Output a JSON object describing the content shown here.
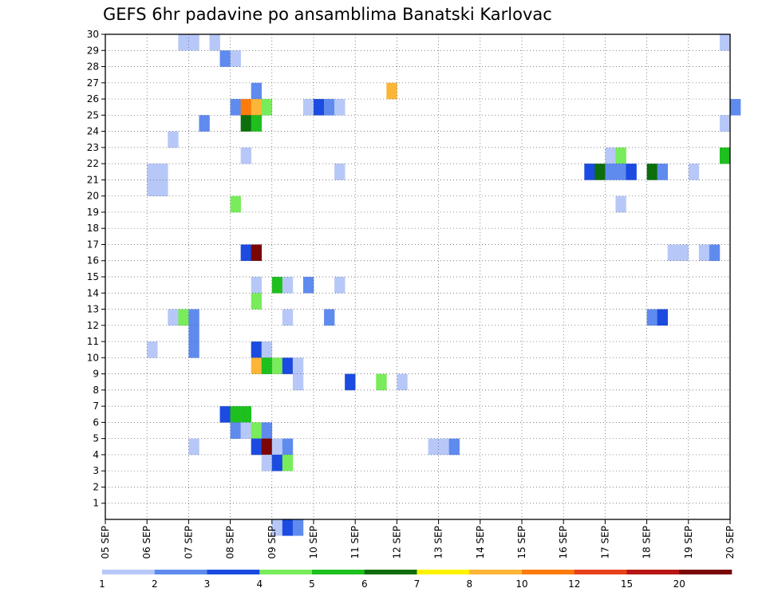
{
  "chart_data": {
    "type": "heatmap",
    "title": "GEFS 6hr padavine po ansamblima Banatski Karlovac",
    "xlabel": "",
    "ylabel": "",
    "x_ticks": [
      "05 SEP",
      "06 SEP",
      "07 SEP",
      "08 SEP",
      "09 SEP",
      "10 SEP",
      "11 SEP",
      "12 SEP",
      "13 SEP",
      "14 SEP",
      "15 SEP",
      "16 SEP",
      "17 SEP",
      "18 SEP",
      "19 SEP",
      "20 SEP"
    ],
    "y_ticks": [
      1,
      2,
      3,
      4,
      5,
      6,
      7,
      8,
      9,
      10,
      11,
      12,
      13,
      14,
      15,
      16,
      17,
      18,
      19,
      20,
      21,
      22,
      23,
      24,
      25,
      26,
      27,
      28,
      29,
      30
    ],
    "xlim": [
      0,
      60
    ],
    "ylim": [
      0,
      30
    ],
    "grid": true,
    "colorbar": {
      "colors": [
        "#b7c8f8",
        "#5f8bef",
        "#1b4be0",
        "#78ec5a",
        "#1ec01e",
        "#0c6e0c",
        "#fff200",
        "#fcb536",
        "#fb7b0c",
        "#e8421a",
        "#b81616",
        "#7a0606"
      ],
      "labels": [
        "1",
        "2",
        "3",
        "4",
        "5",
        "6",
        "7",
        "8",
        "10",
        "12",
        "15",
        "20"
      ]
    },
    "cells": [
      {
        "x": 7,
        "y": 30,
        "v": 1
      },
      {
        "x": 8,
        "y": 30,
        "v": 1
      },
      {
        "x": 10,
        "y": 30,
        "v": 1
      },
      {
        "x": 59,
        "y": 30,
        "v": 1
      },
      {
        "x": 11,
        "y": 29,
        "v": 2
      },
      {
        "x": 12,
        "y": 29,
        "v": 1
      },
      {
        "x": 14,
        "y": 27,
        "v": 2
      },
      {
        "x": 27,
        "y": 27,
        "v": 8
      },
      {
        "x": 12,
        "y": 26,
        "v": 2
      },
      {
        "x": 13,
        "y": 26,
        "v": 10
      },
      {
        "x": 14,
        "y": 26,
        "v": 8
      },
      {
        "x": 15,
        "y": 26,
        "v": 4
      },
      {
        "x": 19,
        "y": 26,
        "v": 1
      },
      {
        "x": 20,
        "y": 26,
        "v": 3
      },
      {
        "x": 21,
        "y": 26,
        "v": 2
      },
      {
        "x": 22,
        "y": 26,
        "v": 1
      },
      {
        "x": 60,
        "y": 26,
        "v": 2
      },
      {
        "x": 9,
        "y": 25,
        "v": 2
      },
      {
        "x": 13,
        "y": 25,
        "v": 6
      },
      {
        "x": 14,
        "y": 25,
        "v": 5
      },
      {
        "x": 59,
        "y": 25,
        "v": 1
      },
      {
        "x": 6,
        "y": 24,
        "v": 1
      },
      {
        "x": 13,
        "y": 23,
        "v": 1
      },
      {
        "x": 48,
        "y": 23,
        "v": 1
      },
      {
        "x": 49,
        "y": 23,
        "v": 4
      },
      {
        "x": 59,
        "y": 23,
        "v": 5
      },
      {
        "x": 4,
        "y": 22,
        "v": 1
      },
      {
        "x": 5,
        "y": 22,
        "v": 1
      },
      {
        "x": 4,
        "y": 21,
        "v": 1
      },
      {
        "x": 5,
        "y": 21,
        "v": 1
      },
      {
        "x": 22,
        "y": 22,
        "v": 1
      },
      {
        "x": 46,
        "y": 22,
        "v": 3
      },
      {
        "x": 47,
        "y": 22,
        "v": 6
      },
      {
        "x": 48,
        "y": 22,
        "v": 2
      },
      {
        "x": 49,
        "y": 22,
        "v": 2
      },
      {
        "x": 50,
        "y": 22,
        "v": 3
      },
      {
        "x": 52,
        "y": 22,
        "v": 6
      },
      {
        "x": 53,
        "y": 22,
        "v": 2
      },
      {
        "x": 56,
        "y": 22,
        "v": 1
      },
      {
        "x": 12,
        "y": 20,
        "v": 4
      },
      {
        "x": 49,
        "y": 20,
        "v": 1
      },
      {
        "x": 13,
        "y": 17,
        "v": 3
      },
      {
        "x": 14,
        "y": 17,
        "v": 20
      },
      {
        "x": 54,
        "y": 17,
        "v": 1
      },
      {
        "x": 55,
        "y": 17,
        "v": 1
      },
      {
        "x": 57,
        "y": 17,
        "v": 1
      },
      {
        "x": 58,
        "y": 17,
        "v": 2
      },
      {
        "x": 14,
        "y": 15,
        "v": 1
      },
      {
        "x": 16,
        "y": 15,
        "v": 5
      },
      {
        "x": 17,
        "y": 15,
        "v": 1
      },
      {
        "x": 19,
        "y": 15,
        "v": 2
      },
      {
        "x": 22,
        "y": 15,
        "v": 1
      },
      {
        "x": 14,
        "y": 14,
        "v": 4
      },
      {
        "x": 6,
        "y": 13,
        "v": 1
      },
      {
        "x": 7,
        "y": 13,
        "v": 4
      },
      {
        "x": 8,
        "y": 13,
        "v": 2
      },
      {
        "x": 8,
        "y": 12,
        "v": 2
      },
      {
        "x": 17,
        "y": 13,
        "v": 1
      },
      {
        "x": 21,
        "y": 13,
        "v": 2
      },
      {
        "x": 52,
        "y": 13,
        "v": 2
      },
      {
        "x": 53,
        "y": 13,
        "v": 3
      },
      {
        "x": 4,
        "y": 11,
        "v": 1
      },
      {
        "x": 8,
        "y": 11,
        "v": 2
      },
      {
        "x": 14,
        "y": 11,
        "v": 3
      },
      {
        "x": 15,
        "y": 11,
        "v": 1
      },
      {
        "x": 14,
        "y": 10,
        "v": 8
      },
      {
        "x": 15,
        "y": 10,
        "v": 5
      },
      {
        "x": 16,
        "y": 10,
        "v": 4
      },
      {
        "x": 17,
        "y": 10,
        "v": 3
      },
      {
        "x": 18,
        "y": 10,
        "v": 1
      },
      {
        "x": 18,
        "y": 9,
        "v": 1
      },
      {
        "x": 23,
        "y": 9,
        "v": 3
      },
      {
        "x": 26,
        "y": 9,
        "v": 4
      },
      {
        "x": 28,
        "y": 9,
        "v": 1
      },
      {
        "x": 11,
        "y": 7,
        "v": 3
      },
      {
        "x": 12,
        "y": 7,
        "v": 5
      },
      {
        "x": 13,
        "y": 7,
        "v": 5
      },
      {
        "x": 12,
        "y": 6,
        "v": 2
      },
      {
        "x": 13,
        "y": 6,
        "v": 1
      },
      {
        "x": 14,
        "y": 6,
        "v": 4
      },
      {
        "x": 15,
        "y": 6,
        "v": 2
      },
      {
        "x": 8,
        "y": 5,
        "v": 1
      },
      {
        "x": 14,
        "y": 5,
        "v": 3
      },
      {
        "x": 15,
        "y": 5,
        "v": 20
      },
      {
        "x": 16,
        "y": 5,
        "v": 1
      },
      {
        "x": 17,
        "y": 5,
        "v": 2
      },
      {
        "x": 31,
        "y": 5,
        "v": 1
      },
      {
        "x": 32,
        "y": 5,
        "v": 1
      },
      {
        "x": 33,
        "y": 5,
        "v": 2
      },
      {
        "x": 15,
        "y": 4,
        "v": 1
      },
      {
        "x": 16,
        "y": 4,
        "v": 3
      },
      {
        "x": 17,
        "y": 4,
        "v": 4
      },
      {
        "x": 16,
        "y": 0,
        "v": 1
      },
      {
        "x": 17,
        "y": 0,
        "v": 3
      },
      {
        "x": 18,
        "y": 0,
        "v": 2
      }
    ]
  }
}
